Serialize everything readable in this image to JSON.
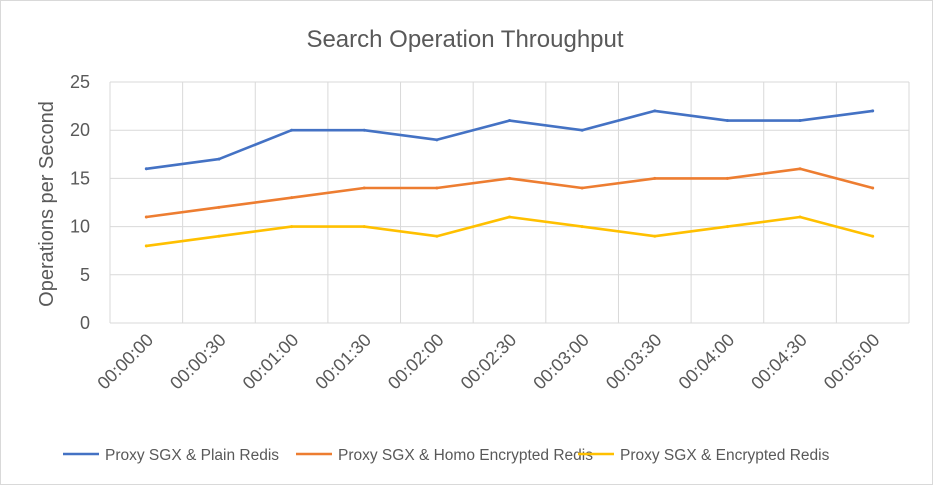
{
  "chart_data": {
    "type": "line",
    "title": "Search Operation Throughput",
    "xlabel": "",
    "ylabel": "Operations per Second",
    "ylim": [
      0,
      25
    ],
    "yticks": [
      0,
      5,
      10,
      15,
      20,
      25
    ],
    "grid": true,
    "legend_position": "bottom",
    "categories": [
      "00:00:00",
      "00:00:30",
      "00:01:00",
      "00:01:30",
      "00:02:00",
      "00:02:30",
      "00:03:00",
      "00:03:30",
      "00:04:00",
      "00:04:30",
      "00:05:00"
    ],
    "series": [
      {
        "name": "Proxy SGX & Plain Redis",
        "color": "#4472c4",
        "values": [
          16,
          17,
          20,
          20,
          19,
          21,
          20,
          22,
          21,
          21,
          22
        ]
      },
      {
        "name": "Proxy SGX & Homo Encrypted Redis",
        "color": "#ed7d31",
        "values": [
          11,
          12,
          13,
          14,
          14,
          15,
          14,
          15,
          15,
          16,
          14
        ]
      },
      {
        "name": "Proxy SGX & Encrypted Redis",
        "color": "#ffc000",
        "values": [
          8,
          9,
          10,
          10,
          9,
          11,
          10,
          9,
          10,
          11,
          9
        ]
      }
    ]
  }
}
